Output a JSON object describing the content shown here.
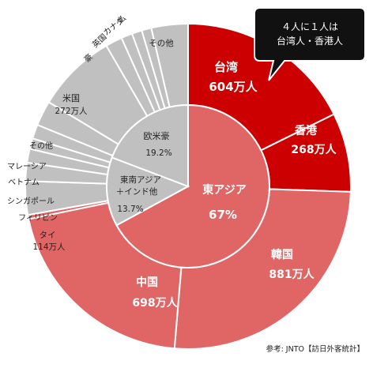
{
  "chart_data": {
    "type": "pie",
    "subtype": "nested-donut",
    "inner_ring": [
      {
        "label": "東アジア",
        "value_label": "67%",
        "value": 67,
        "color": "#e06666"
      },
      {
        "label": "東南アジア\n＋インド他",
        "value_label": "13.7%",
        "value": 13.7,
        "color": "#c0c0c0"
      },
      {
        "label": "欧米豪",
        "value_label": "19.2%",
        "value": 19.2,
        "color": "#c0c0c0"
      }
    ],
    "outer_ring": [
      {
        "label": "台湾",
        "value_label": "604万人",
        "value": 604,
        "color": "#cc0000"
      },
      {
        "label": "香港",
        "value_label": "268万人",
        "value": 268,
        "color": "#cc0000"
      },
      {
        "label": "韓国",
        "value_label": "881万人",
        "value": 881,
        "color": "#e06666"
      },
      {
        "label": "中国",
        "value_label": "698万人",
        "value": 698,
        "color": "#e06666"
      },
      {
        "label": "",
        "value_label": "",
        "value": 14,
        "color": "#e06666"
      },
      {
        "label": "タイ",
        "value_label": "114万人",
        "value": 114,
        "color": "#c0c0c0"
      },
      {
        "label": "フィリピン",
        "value_label": "",
        "value": 62,
        "color": "#c0c0c0"
      },
      {
        "label": "シンガポール",
        "value_label": "",
        "value": 47,
        "color": "#c0c0c0"
      },
      {
        "label": "ベトナム",
        "value_label": "",
        "value": 36,
        "color": "#c0c0c0"
      },
      {
        "label": "マレーシア",
        "value_label": "",
        "value": 48,
        "color": "#c0c0c0"
      },
      {
        "label": "その他",
        "value_label": "",
        "value": 85,
        "color": "#c0c0c0"
      },
      {
        "label": "米国",
        "value_label": "272万人",
        "value": 272,
        "color": "#c0c0c0"
      },
      {
        "label": "豪",
        "value_label": "",
        "value": 57,
        "color": "#c0c0c0"
      },
      {
        "label": "英国",
        "value_label": "",
        "value": 38,
        "color": "#c0c0c0"
      },
      {
        "label": "カナダ",
        "value_label": "",
        "value": 34,
        "color": "#c0c0c0"
      },
      {
        "label": "仏",
        "value_label": "",
        "value": 33,
        "color": "#c0c0c0"
      },
      {
        "label": "その他",
        "value_label": "",
        "value": 124,
        "color": "#c0c0c0"
      }
    ],
    "callout": {
      "line1": "４人に１人は",
      "line2": "台湾人・香港人"
    },
    "source": "参考: JNTO【訪日外客統計】"
  }
}
